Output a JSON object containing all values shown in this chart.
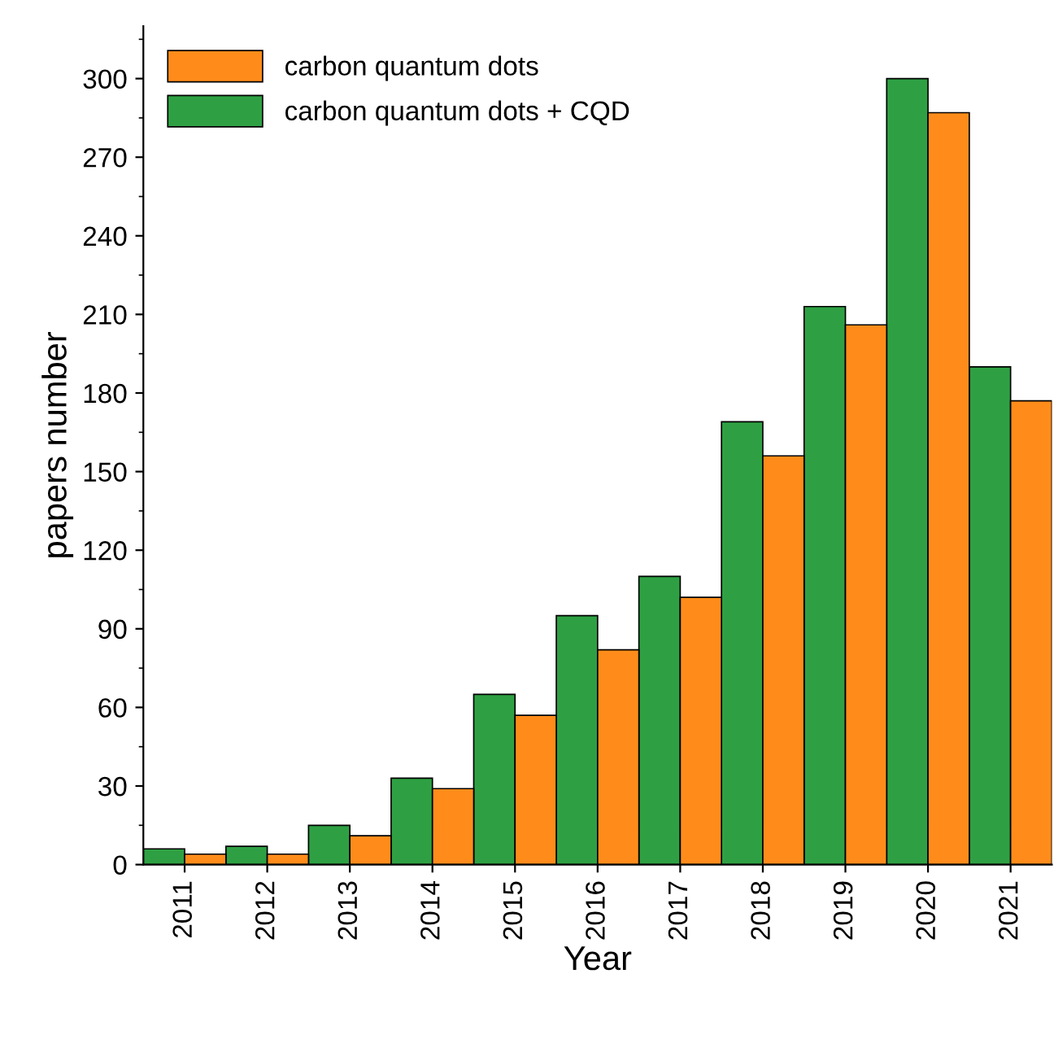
{
  "chart_data": {
    "type": "bar",
    "xlabel": "Year",
    "ylabel": "papers number",
    "categories": [
      "2011",
      "2012",
      "2013",
      "2014",
      "2015",
      "2016",
      "2017",
      "2018",
      "2019",
      "2020",
      "2021"
    ],
    "series": [
      {
        "name": "carbon quantum dots + CQD",
        "color": "#2ea043",
        "values": [
          6,
          7,
          15,
          33,
          65,
          95,
          110,
          169,
          213,
          300,
          190
        ]
      },
      {
        "name": "carbon quantum dots",
        "color": "#ff8c1a",
        "values": [
          4,
          4,
          11,
          29,
          57,
          82,
          102,
          156,
          206,
          287,
          177
        ]
      }
    ],
    "ylim": [
      0,
      320
    ],
    "yticks": [
      0,
      30,
      60,
      90,
      120,
      150,
      180,
      210,
      240,
      270,
      300
    ],
    "grid": false,
    "legend": "top left"
  }
}
